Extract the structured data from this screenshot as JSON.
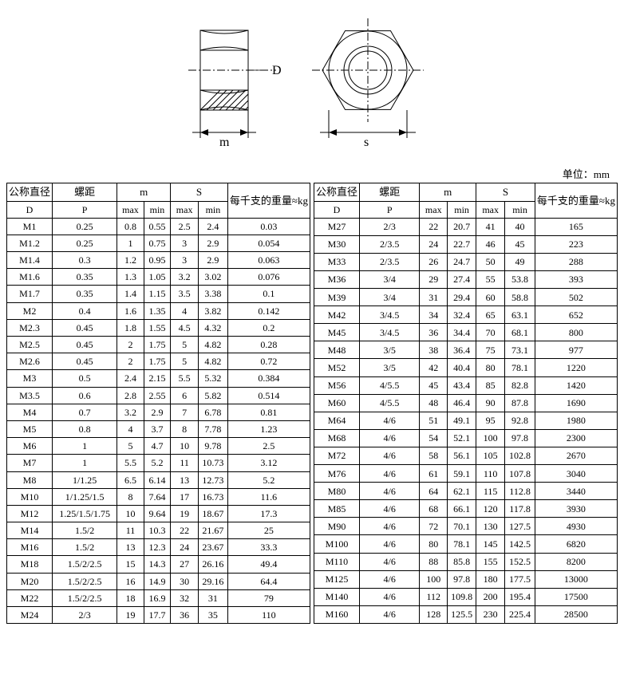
{
  "unit_label": "单位：mm",
  "diagram": {
    "label_D": "D",
    "label_m": "m",
    "label_s": "s",
    "stroke": "#000000",
    "hatch": "#000000"
  },
  "header": {
    "D_title": "公称直径",
    "D_sym": "D",
    "P_title": "螺距",
    "P_sym": "P",
    "m_sym": "m",
    "S_sym": "S",
    "max": "max",
    "min": "min",
    "weight": "每千支的重量≈kg"
  },
  "left_rows": [
    [
      "M1",
      "0.25",
      "0.8",
      "0.55",
      "2.5",
      "2.4",
      "0.03"
    ],
    [
      "M1.2",
      "0.25",
      "1",
      "0.75",
      "3",
      "2.9",
      "0.054"
    ],
    [
      "M1.4",
      "0.3",
      "1.2",
      "0.95",
      "3",
      "2.9",
      "0.063"
    ],
    [
      "M1.6",
      "0.35",
      "1.3",
      "1.05",
      "3.2",
      "3.02",
      "0.076"
    ],
    [
      "M1.7",
      "0.35",
      "1.4",
      "1.15",
      "3.5",
      "3.38",
      "0.1"
    ],
    [
      "M2",
      "0.4",
      "1.6",
      "1.35",
      "4",
      "3.82",
      "0.142"
    ],
    [
      "M2.3",
      "0.45",
      "1.8",
      "1.55",
      "4.5",
      "4.32",
      "0.2"
    ],
    [
      "M2.5",
      "0.45",
      "2",
      "1.75",
      "5",
      "4.82",
      "0.28"
    ],
    [
      "M2.6",
      "0.45",
      "2",
      "1.75",
      "5",
      "4.82",
      "0.72"
    ],
    [
      "M3",
      "0.5",
      "2.4",
      "2.15",
      "5.5",
      "5.32",
      "0.384"
    ],
    [
      "M3.5",
      "0.6",
      "2.8",
      "2.55",
      "6",
      "5.82",
      "0.514"
    ],
    [
      "M4",
      "0.7",
      "3.2",
      "2.9",
      "7",
      "6.78",
      "0.81"
    ],
    [
      "M5",
      "0.8",
      "4",
      "3.7",
      "8",
      "7.78",
      "1.23"
    ],
    [
      "M6",
      "1",
      "5",
      "4.7",
      "10",
      "9.78",
      "2.5"
    ],
    [
      "M7",
      "1",
      "5.5",
      "5.2",
      "11",
      "10.73",
      "3.12"
    ],
    [
      "M8",
      "1/1.25",
      "6.5",
      "6.14",
      "13",
      "12.73",
      "5.2"
    ],
    [
      "M10",
      "1/1.25/1.5",
      "8",
      "7.64",
      "17",
      "16.73",
      "11.6"
    ],
    [
      "M12",
      "1.25/1.5/1.75",
      "10",
      "9.64",
      "19",
      "18.67",
      "17.3"
    ],
    [
      "M14",
      "1.5/2",
      "11",
      "10.3",
      "22",
      "21.67",
      "25"
    ],
    [
      "M16",
      "1.5/2",
      "13",
      "12.3",
      "24",
      "23.67",
      "33.3"
    ],
    [
      "M18",
      "1.5/2/2.5",
      "15",
      "14.3",
      "27",
      "26.16",
      "49.4"
    ],
    [
      "M20",
      "1.5/2/2.5",
      "16",
      "14.9",
      "30",
      "29.16",
      "64.4"
    ],
    [
      "M22",
      "1.5/2/2.5",
      "18",
      "16.9",
      "32",
      "31",
      "79"
    ],
    [
      "M24",
      "2/3",
      "19",
      "17.7",
      "36",
      "35",
      "110"
    ]
  ],
  "right_rows": [
    [
      "M27",
      "2/3",
      "22",
      "20.7",
      "41",
      "40",
      "165"
    ],
    [
      "M30",
      "2/3.5",
      "24",
      "22.7",
      "46",
      "45",
      "223"
    ],
    [
      "M33",
      "2/3.5",
      "26",
      "24.7",
      "50",
      "49",
      "288"
    ],
    [
      "M36",
      "3/4",
      "29",
      "27.4",
      "55",
      "53.8",
      "393"
    ],
    [
      "M39",
      "3/4",
      "31",
      "29.4",
      "60",
      "58.8",
      "502"
    ],
    [
      "M42",
      "3/4.5",
      "34",
      "32.4",
      "65",
      "63.1",
      "652"
    ],
    [
      "M45",
      "3/4.5",
      "36",
      "34.4",
      "70",
      "68.1",
      "800"
    ],
    [
      "M48",
      "3/5",
      "38",
      "36.4",
      "75",
      "73.1",
      "977"
    ],
    [
      "M52",
      "3/5",
      "42",
      "40.4",
      "80",
      "78.1",
      "1220"
    ],
    [
      "M56",
      "4/5.5",
      "45",
      "43.4",
      "85",
      "82.8",
      "1420"
    ],
    [
      "M60",
      "4/5.5",
      "48",
      "46.4",
      "90",
      "87.8",
      "1690"
    ],
    [
      "M64",
      "4/6",
      "51",
      "49.1",
      "95",
      "92.8",
      "1980"
    ],
    [
      "M68",
      "4/6",
      "54",
      "52.1",
      "100",
      "97.8",
      "2300"
    ],
    [
      "M72",
      "4/6",
      "58",
      "56.1",
      "105",
      "102.8",
      "2670"
    ],
    [
      "M76",
      "4/6",
      "61",
      "59.1",
      "110",
      "107.8",
      "3040"
    ],
    [
      "M80",
      "4/6",
      "64",
      "62.1",
      "115",
      "112.8",
      "3440"
    ],
    [
      "M85",
      "4/6",
      "68",
      "66.1",
      "120",
      "117.8",
      "3930"
    ],
    [
      "M90",
      "4/6",
      "72",
      "70.1",
      "130",
      "127.5",
      "4930"
    ],
    [
      "M100",
      "4/6",
      "80",
      "78.1",
      "145",
      "142.5",
      "6820"
    ],
    [
      "M110",
      "4/6",
      "88",
      "85.8",
      "155",
      "152.5",
      "8200"
    ],
    [
      "M125",
      "4/6",
      "100",
      "97.8",
      "180",
      "177.5",
      "13000"
    ],
    [
      "M140",
      "4/6",
      "112",
      "109.8",
      "200",
      "195.4",
      "17500"
    ],
    [
      "M160",
      "4/6",
      "128",
      "125.5",
      "230",
      "225.4",
      "28500"
    ]
  ]
}
